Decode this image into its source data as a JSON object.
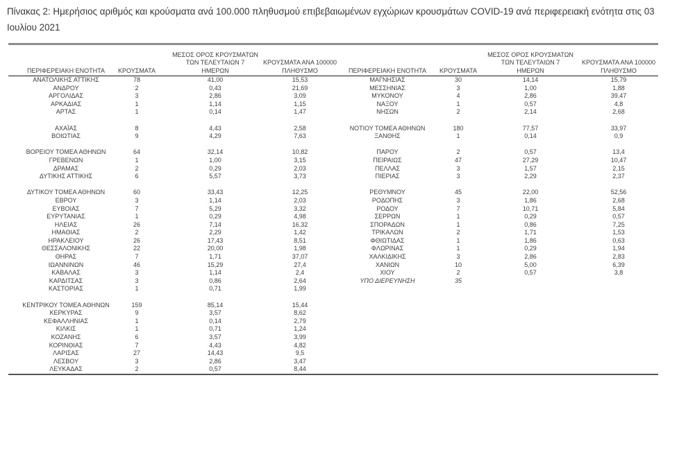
{
  "title": "Πίνακας 2:  Ημερήσιος αριθμός και κρούσματα ανά 100.000 πληθυσμού επιβεβαιωμένων εγχώριων κρουσμάτων COVID-19 ανά περιφερειακή ενότητα στις 03 Ιουλίου 2021",
  "colors": {
    "text": "#3d3d3d",
    "top_rule": "#8c8c8c",
    "header_rule": "#1a1a1a",
    "bottom_rule": "#555555"
  },
  "table": {
    "headers": {
      "region": "ΠΕΡΙΦΕΡΕΙΑΚΗ ΕΝΟΤΗΤΑ",
      "cases": "ΚΡΟΥΣΜΑΤΑ",
      "avg7_lines": [
        "ΜΕΣΟΣ ΟΡΟΣ ΚΡΟΥΣΜΑΤΩΝ",
        "ΤΩΝ ΤΕΛΕΥΤΑΙΩΝ 7",
        "ΗΜΕΡΩΝ"
      ],
      "per100k_lines": [
        "ΚΡΟΥΣΜΑΤΑ ΑΝΑ 100000",
        "ΠΛΗΘΥΣΜΟ"
      ]
    },
    "left_rows": [
      [
        "ΑΝΑΤΟΛΙΚΗΣ ΑΤΤΙΚΗΣ",
        "78",
        "41,00",
        "15,53"
      ],
      [
        "ΑΝΔΡΟΥ",
        "2",
        "0,43",
        "21,69"
      ],
      [
        "ΑΡΓΟΛΙΔΑΣ",
        "3",
        "2,86",
        "3,09"
      ],
      [
        "ΑΡΚΑΔΙΑΣ",
        "1",
        "1,14",
        "1,15"
      ],
      [
        "ΑΡΤΑΣ",
        "1",
        "0,14",
        "1,47"
      ],
      null,
      [
        "ΑΧΑΪΑΣ",
        "8",
        "4,43",
        "2,58"
      ],
      [
        "ΒΟΙΩΤΙΑΣ",
        "9",
        "4,29",
        "7,63"
      ],
      null,
      [
        "ΒΟΡΕΙΟΥ ΤΟΜΕΑ ΑΘΗΝΩΝ",
        "64",
        "32,14",
        "10,82"
      ],
      [
        "ΓΡΕΒΕΝΩΝ",
        "1",
        "1,00",
        "3,15"
      ],
      [
        "ΔΡΑΜΑΣ",
        "2",
        "0,29",
        "2,03"
      ],
      [
        "ΔΥΤΙΚΗΣ ΑΤΤΙΚΗΣ",
        "6",
        "5,57",
        "3,73"
      ],
      null,
      [
        "ΔΥΤΙΚΟΥ ΤΟΜΕΑ ΑΘΗΝΩΝ",
        "60",
        "33,43",
        "12,25"
      ],
      [
        "ΕΒΡΟΥ",
        "3",
        "1,14",
        "2,03"
      ],
      [
        "ΕΥΒΟΙΑΣ",
        "7",
        "5,29",
        "3,32"
      ],
      [
        "ΕΥΡΥΤΑΝΙΑΣ",
        "1",
        "0,29",
        "4,98"
      ],
      [
        "ΗΛΕΙΑΣ",
        "26",
        "7,14",
        "16,32"
      ],
      [
        "ΗΜΑΘΙΑΣ",
        "2",
        "2,29",
        "1,42"
      ],
      [
        "ΗΡΑΚΛΕΙΟΥ",
        "26",
        "17,43",
        "8,51"
      ],
      [
        "ΘΕΣΣΑΛΟΝΙΚΗΣ",
        "22",
        "20,00",
        "1,98"
      ],
      [
        "ΘΗΡΑΣ",
        "7",
        "1,71",
        "37,07"
      ],
      [
        "ΙΩΑΝΝΙΝΩΝ",
        "46",
        "15,29",
        "27,4"
      ],
      [
        "ΚΑΒΑΛΑΣ",
        "3",
        "1,14",
        "2,4"
      ],
      [
        "ΚΑΡΔΙΤΣΑΣ",
        "3",
        "0,86",
        "2,64"
      ],
      [
        "ΚΑΣΤΟΡΙΑΣ",
        "1",
        "0,71",
        "1,99"
      ],
      null,
      [
        "ΚΕΝΤΡΙΚΟΥ ΤΟΜΕΑ ΑΘΗΝΩΝ",
        "159",
        "85,14",
        "15,44"
      ],
      [
        "ΚΕΡΚΥΡΑΣ",
        "9",
        "3,57",
        "8,62"
      ],
      [
        "ΚΕΦΑΛΛΗΝΙΑΣ",
        "1",
        "0,14",
        "2,79"
      ],
      [
        "ΚΙΛΚΙΣ",
        "1",
        "0,71",
        "1,24"
      ],
      [
        "ΚΟΖΑΝΗΣ",
        "6",
        "3,57",
        "3,99"
      ],
      [
        "ΚΟΡΙΝΘΙΑΣ",
        "7",
        "4,43",
        "4,82"
      ],
      [
        "ΛΑΡΙΣΑΣ",
        "27",
        "14,43",
        "9,5"
      ],
      [
        "ΛΕΣΒΟΥ",
        "3",
        "2,86",
        "3,47"
      ],
      [
        "ΛΕΥΚΑΔΑΣ",
        "2",
        "0,57",
        "8,44"
      ]
    ],
    "right_rows": [
      [
        "ΜΑΓΝΗΣΙΑΣ",
        "30",
        "14,14",
        "15,79"
      ],
      [
        "ΜΕΣΣΗΝΙΑΣ",
        "3",
        "1,00",
        "1,88"
      ],
      [
        "ΜΥΚΟΝΟΥ",
        "4",
        "2,86",
        "39,47"
      ],
      [
        "ΝΑΞΟΥ",
        "1",
        "0,57",
        "4,8"
      ],
      [
        "ΝΗΣΩΝ",
        "2",
        "2,14",
        "2,68"
      ],
      null,
      [
        "ΝΟΤΙΟΥ ΤΟΜΕΑ ΑΘΗΝΩΝ",
        "180",
        "77,57",
        "33,97"
      ],
      [
        "ΞΑΝΘΗΣ",
        "1",
        "0,14",
        "0,9"
      ],
      null,
      [
        "ΠΑΡΟΥ",
        "2",
        "0,57",
        "13,4"
      ],
      [
        "ΠΕΙΡΑΙΩΣ",
        "47",
        "27,29",
        "10,47"
      ],
      [
        "ΠΕΛΛΑΣ",
        "3",
        "1,57",
        "2,15"
      ],
      [
        "ΠΙΕΡΙΑΣ",
        "3",
        "2,29",
        "2,37"
      ],
      null,
      [
        "ΡΕΘΥΜΝΟΥ",
        "45",
        "22,00",
        "52,56"
      ],
      [
        "ΡΟΔΟΠΗΣ",
        "3",
        "1,86",
        "2,68"
      ],
      [
        "ΡΟΔΟΥ",
        "7",
        "10,71",
        "5,84"
      ],
      [
        "ΣΕΡΡΩΝ",
        "1",
        "0,29",
        "0,57"
      ],
      [
        "ΣΠΟΡΑΔΩΝ",
        "1",
        "0,86",
        "7,25"
      ],
      [
        "ΤΡΙΚΑΛΩΝ",
        "2",
        "1,71",
        "1,53"
      ],
      [
        "ΦΘΙΩΤΙΔΑΣ",
        "1",
        "1,86",
        "0,63"
      ],
      [
        "ΦΛΩΡΙΝΑΣ",
        "1",
        "0,29",
        "1,94"
      ],
      [
        "ΧΑΛΚΙΔΙΚΗΣ",
        "3",
        "2,86",
        "2,83"
      ],
      [
        "ΧΑΝΙΩΝ",
        "10",
        "5,00",
        "6,39"
      ],
      [
        "ΧΙΟΥ",
        "2",
        "0,57",
        "3,8"
      ],
      [
        "ΥΠΟ ΔΙΕΡΕΥΝΗΣΗ",
        "35",
        "",
        "",
        "italic"
      ],
      null,
      null,
      null,
      null,
      null,
      null,
      null,
      null,
      null,
      null,
      null
    ]
  }
}
